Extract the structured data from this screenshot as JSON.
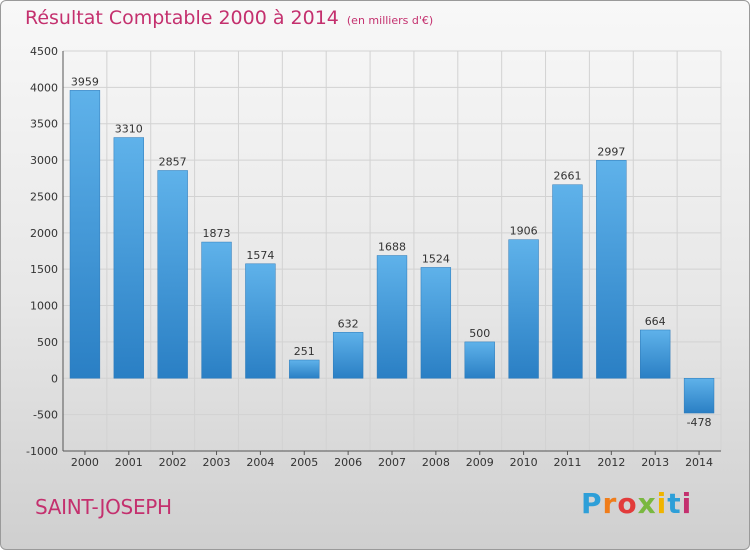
{
  "header": {
    "title": "Résultat Comptable 2000 à 2014",
    "unit_note": "(en milliers d'€)"
  },
  "footer": {
    "city": "SAINT-JOSEPH",
    "logo_letters": [
      "P",
      "r",
      "o",
      "x",
      "i",
      "t",
      "i"
    ],
    "logo_colors": [
      "#2e9fd8",
      "#f07d1a",
      "#e23b3b",
      "#7ab840",
      "#f0b400",
      "#2e9fd8",
      "#c4306e"
    ]
  },
  "chart_data": {
    "type": "bar",
    "title": "Résultat Comptable 2000 à 2014",
    "subtitle": "(en milliers d'€)",
    "xlabel": "",
    "ylabel": "",
    "categories": [
      "2000",
      "2001",
      "2002",
      "2003",
      "2004",
      "2005",
      "2006",
      "2007",
      "2008",
      "2009",
      "2010",
      "2011",
      "2012",
      "2013",
      "2014"
    ],
    "values": [
      3959,
      3310,
      2857,
      1873,
      1574,
      251,
      632,
      1688,
      1524,
      500,
      1906,
      2661,
      2997,
      664,
      -478
    ],
    "ylim": [
      -1000,
      4500
    ],
    "yticks": [
      -1000,
      -500,
      0,
      500,
      1000,
      1500,
      2000,
      2500,
      3000,
      3500,
      4000,
      4500
    ],
    "grid": true,
    "bar_color": "#4a9fdf"
  }
}
